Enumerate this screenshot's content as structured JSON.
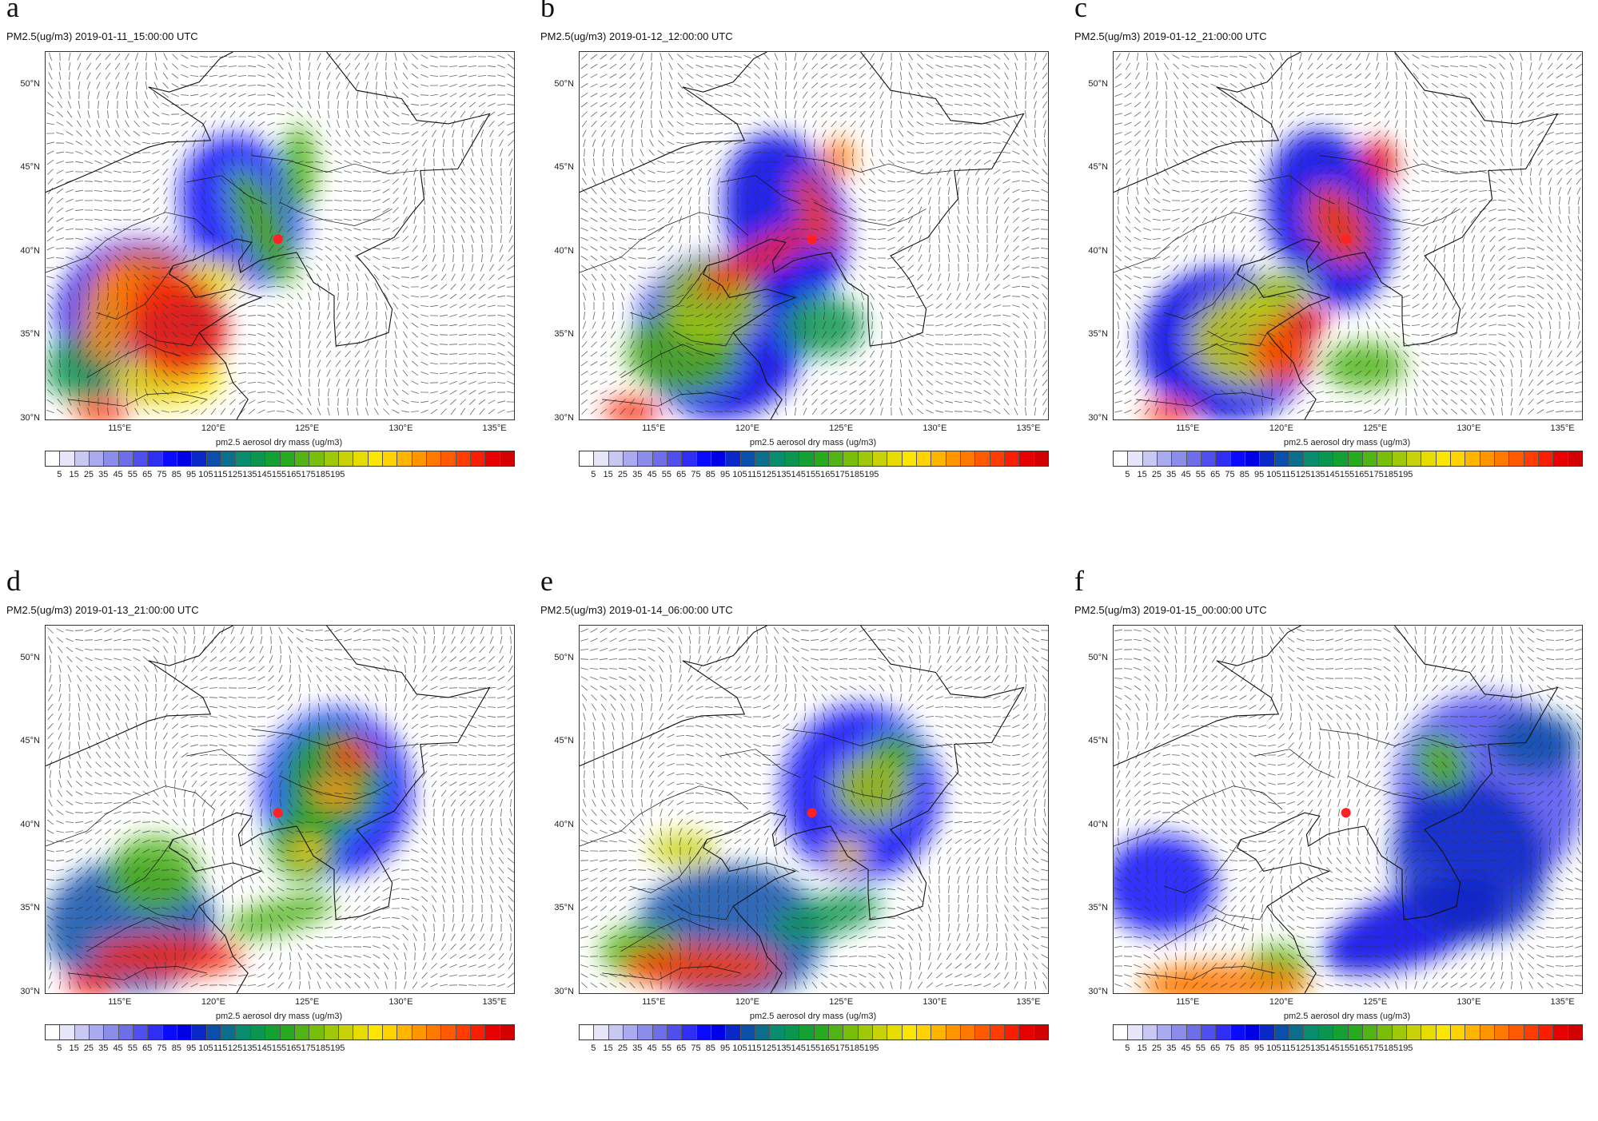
{
  "figure": {
    "panels": [
      {
        "letter": "a",
        "title": "PM2.5(ug/m3) 2019-01-11_15:00:00 UTC",
        "pattern": "a"
      },
      {
        "letter": "b",
        "title": "PM2.5(ug/m3) 2019-01-12_12:00:00 UTC",
        "pattern": "b"
      },
      {
        "letter": "c",
        "title": "PM2.5(ug/m3) 2019-01-12_21:00:00 UTC",
        "pattern": "c"
      },
      {
        "letter": "d",
        "title": "PM2.5(ug/m3) 2019-01-13_21:00:00 UTC",
        "pattern": "d"
      },
      {
        "letter": "e",
        "title": "PM2.5(ug/m3) 2019-01-14_06:00:00 UTC",
        "pattern": "e"
      },
      {
        "letter": "f",
        "title": "PM2.5(ug/m3) 2019-01-15_00:00:00 UTC",
        "pattern": "f"
      }
    ],
    "lat_labels": [
      "50°N",
      "45°N",
      "40°N",
      "35°N",
      "30°N"
    ],
    "lon_labels": [
      "115°E",
      "120°E",
      "125°E",
      "130°E",
      "135°E"
    ],
    "colorbar": {
      "title": "pm2.5 aerosol dry mass  (ug/m3)",
      "labels": [
        "5",
        "15",
        "25",
        "35",
        "45",
        "55",
        "65",
        "75",
        "85",
        "95",
        "105",
        "115",
        "125",
        "135",
        "145",
        "155",
        "165",
        "175",
        "185",
        "195"
      ],
      "colors": [
        "#ffffff",
        "#e6e6f8",
        "#c8c8f2",
        "#aaaaee",
        "#8c8cea",
        "#6e6ee8",
        "#4f4ff0",
        "#2e2ef5",
        "#0a0afc",
        "#0000e6",
        "#0a28c8",
        "#0a50aa",
        "#0a6e8c",
        "#0a8c6e",
        "#0a9650",
        "#14a032",
        "#28aa1e",
        "#50b414",
        "#78be0a",
        "#a0c80a",
        "#c8d20a",
        "#e6dc00",
        "#fae600",
        "#ffd200",
        "#ffb400",
        "#ff9600",
        "#ff7800",
        "#ff5a00",
        "#ff3c00",
        "#fa1e00",
        "#e60000",
        "#d20000"
      ]
    },
    "station_marker": {
      "lon": 123.4,
      "lat": 40.8,
      "color": "#ff2222"
    }
  }
}
